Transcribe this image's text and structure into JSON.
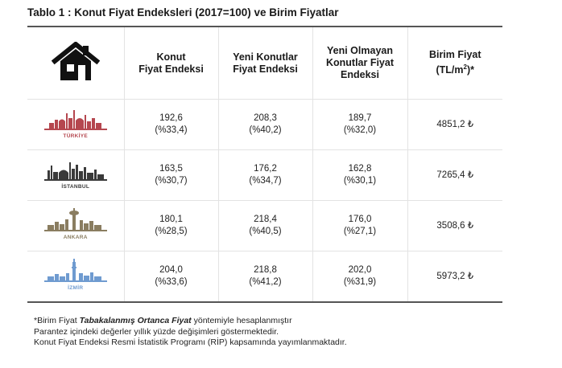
{
  "title": "Tablo 1 : Konut Fiyat Endeksleri (2017=100) ve Birim Fiyatlar",
  "header": {
    "icon": "house-icon",
    "col1": [
      "Konut",
      "Fiyat Endeksi"
    ],
    "col2": [
      "Yeni Konutlar",
      "Fiyat Endeksi"
    ],
    "col3": [
      "Yeni Olmayan",
      "Konutlar Fiyat",
      "Endeksi"
    ],
    "col4": [
      "Birim Fiyat",
      "(TL/m",
      "2",
      ")*"
    ]
  },
  "rows": [
    {
      "city": "TÜRKİYE",
      "color": "#b5474f",
      "konut": "192,6",
      "konut_pct": "(%33,4)",
      "yeni": "208,3",
      "yeni_pct": "(%40,2)",
      "eski": "189,7",
      "eski_pct": "(%32,0)",
      "birim": "4851,2 ₺"
    },
    {
      "city": "İSTANBUL",
      "color": "#3a3a3a",
      "konut": "163,5",
      "konut_pct": "(%30,7)",
      "yeni": "176,2",
      "yeni_pct": "(%34,7)",
      "eski": "162,8",
      "eski_pct": "(%30,1)",
      "birim": "7265,4 ₺"
    },
    {
      "city": "ANKARA",
      "color": "#8a7d60",
      "konut": "180,1",
      "konut_pct": "(%28,5)",
      "yeni": "218,4",
      "yeni_pct": "(%40,5)",
      "eski": "176,0",
      "eski_pct": "(%27,1)",
      "birim": "3508,6 ₺"
    },
    {
      "city": "İZMİR",
      "color": "#6f9bd0",
      "konut": "204,0",
      "konut_pct": "(%33,6)",
      "yeni": "218,8",
      "yeni_pct": "(%41,2)",
      "eski": "202,0",
      "eski_pct": "(%31,9)",
      "birim": "5973,2 ₺"
    }
  ],
  "notes": {
    "line1_pre": "*Birim Fiyat ",
    "line1_em": "Tabakalanmış Ortanca Fiyat",
    "line1_post": "  yöntemiyle hesaplanmıştır",
    "line2": "Parantez içindeki değerler yıllık yüzde değişimleri göstermektedir.",
    "line3": "Konut Fiyat Endeksi Resmi İstatistik Programı (RİP) kapsamında yayımlanmaktadır."
  }
}
